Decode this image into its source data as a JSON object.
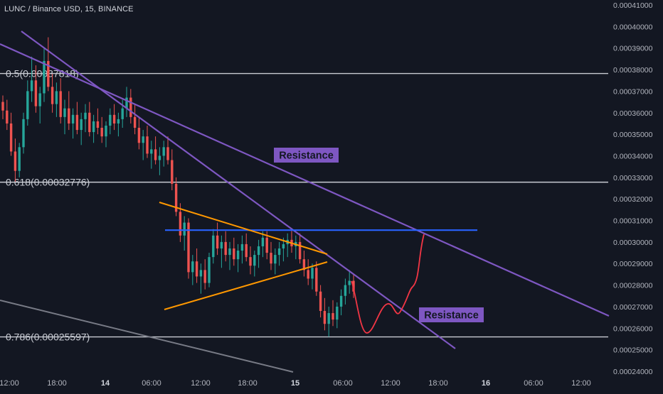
{
  "header": {
    "symbol_title": "LUNC / Binance USD, 15, BINANCE"
  },
  "colors": {
    "background": "#131722",
    "candle_up": "#26a69a",
    "candle_down": "#ef5350",
    "fib_line": "#c9ccd4",
    "trend_purple": "#7e57c2",
    "triangle_orange": "#ff9800",
    "horizontal_blue": "#2962ff",
    "projection_red": "#f23645",
    "channel_gray": "#787b86",
    "axis_text": "#b2b5be"
  },
  "chart_data": {
    "type": "candlestick",
    "title": "LUNC / Binance USD, 15, BINANCE",
    "x_axis": {
      "tick_labels": [
        "12:00",
        "18:00",
        "14",
        "06:00",
        "12:00",
        "18:00",
        "15",
        "06:00",
        "12:00",
        "18:00",
        "16",
        "06:00",
        "12:00"
      ]
    },
    "y_axis": {
      "range": [
        0.00024,
        0.00041
      ],
      "tick_labels": [
        "0.00041000",
        "0.00040000",
        "0.00039000",
        "0.00038000",
        "0.00037000",
        "0.00036000",
        "0.00035000",
        "0.00034000",
        "0.00033000",
        "0.00032000",
        "0.00031000",
        "0.00030000",
        "0.00029000",
        "0.00028000",
        "0.00027000",
        "0.00026000",
        "0.00025000",
        "0.00024000"
      ]
    },
    "fib_levels": [
      {
        "label": "0.5(0.00037818)",
        "value": 0.00037818
      },
      {
        "label": "0.618(0.00032776)",
        "value": 0.00032776
      },
      {
        "label": "0.786(0.00025597)",
        "value": 0.00025597
      }
    ],
    "annotations": [
      {
        "label": "Resistance",
        "position": "upper-middle"
      },
      {
        "label": "Resistance",
        "position": "lower-right"
      }
    ],
    "horizontal_resistance": 0.0003055,
    "candles": [
      [
        0.000365,
        0.000368,
        0.000357,
        0.000361
      ],
      [
        0.000361,
        0.000366,
        0.000352,
        0.000355
      ],
      [
        0.000355,
        0.00036,
        0.00034,
        0.000342
      ],
      [
        0.000342,
        0.000348,
        0.000328,
        0.000333
      ],
      [
        0.000333,
        0.000346,
        0.00033,
        0.000344
      ],
      [
        0.000344,
        0.00036,
        0.000341,
        0.000357
      ],
      [
        0.000357,
        0.000375,
        0.000354,
        0.00037
      ],
      [
        0.00037,
        0.000386,
        0.000365,
        0.000375
      ],
      [
        0.000375,
        0.000382,
        0.00036,
        0.000363
      ],
      [
        0.000363,
        0.000372,
        0.000355,
        0.000369
      ],
      [
        0.000369,
        0.00039,
        0.000365,
        0.000384
      ],
      [
        0.000384,
        0.000395,
        0.00037,
        0.000372
      ],
      [
        0.000372,
        0.000378,
        0.00036,
        0.000364
      ],
      [
        0.000364,
        0.000374,
        0.000358,
        0.00037
      ],
      [
        0.00037,
        0.000376,
        0.000355,
        0.000358
      ],
      [
        0.000358,
        0.000366,
        0.00035,
        0.000362
      ],
      [
        0.000362,
        0.00037,
        0.000352,
        0.000355
      ],
      [
        0.000355,
        0.000362,
        0.000348,
        0.000359
      ],
      [
        0.000359,
        0.000365,
        0.00035,
        0.000352
      ],
      [
        0.000352,
        0.00036,
        0.000345,
        0.000357
      ],
      [
        0.000357,
        0.000364,
        0.000351,
        0.00036
      ],
      [
        0.00036,
        0.000365,
        0.000349,
        0.000351
      ],
      [
        0.000351,
        0.000359,
        0.000346,
        0.000356
      ],
      [
        0.000356,
        0.000362,
        0.00035,
        0.000353
      ],
      [
        0.000353,
        0.000358,
        0.000346,
        0.000349
      ],
      [
        0.000349,
        0.000356,
        0.000344,
        0.000354
      ],
      [
        0.000354,
        0.000362,
        0.00035,
        0.000359
      ],
      [
        0.000359,
        0.000364,
        0.000352,
        0.000355
      ],
      [
        0.000355,
        0.00036,
        0.000349,
        0.000357
      ],
      [
        0.000357,
        0.000366,
        0.000353,
        0.000362
      ],
      [
        0.000362,
        0.000372,
        0.000358,
        0.000367
      ],
      [
        0.000367,
        0.000371,
        0.000355,
        0.000358
      ],
      [
        0.000358,
        0.000364,
        0.00035,
        0.000353
      ],
      [
        0.000353,
        0.000358,
        0.000343,
        0.000346
      ],
      [
        0.000346,
        0.000352,
        0.000338,
        0.000349
      ],
      [
        0.000349,
        0.000354,
        0.000339,
        0.000341
      ],
      [
        0.000341,
        0.000347,
        0.000334,
        0.000343
      ],
      [
        0.000343,
        0.000349,
        0.000336,
        0.000338
      ],
      [
        0.000338,
        0.000344,
        0.000331,
        0.00034
      ],
      [
        0.00034,
        0.000347,
        0.000335,
        0.000344
      ],
      [
        0.000344,
        0.000349,
        0.000336,
        0.000338
      ],
      [
        0.000338,
        0.000343,
        0.000324,
        0.000327
      ],
      [
        0.000327,
        0.00033,
        0.000312,
        0.000314
      ],
      [
        0.000314,
        0.000318,
        0.0003,
        0.000303
      ],
      [
        0.000303,
        0.000312,
        0.000296,
        0.000309
      ],
      [
        0.000309,
        0.000311,
        0.000283,
        0.000286
      ],
      [
        0.000286,
        0.000294,
        0.00028,
        0.000291
      ],
      [
        0.000291,
        0.000297,
        0.000281,
        0.000284
      ],
      [
        0.000284,
        0.00029,
        0.000276,
        0.000287
      ],
      [
        0.000287,
        0.000292,
        0.000278,
        0.000281
      ],
      [
        0.000281,
        0.000295,
        0.000279,
        0.000293
      ],
      [
        0.000293,
        0.000306,
        0.00029,
        0.000303
      ],
      [
        0.000303,
        0.000309,
        0.000294,
        0.000297
      ],
      [
        0.000297,
        0.000303,
        0.000288,
        0.0003
      ],
      [
        0.0003,
        0.000305,
        0.000291,
        0.000294
      ],
      [
        0.000294,
        0.0003,
        0.000287,
        0.000297
      ],
      [
        0.000297,
        0.000302,
        0.000289,
        0.000292
      ],
      [
        0.000292,
        0.000299,
        0.000286,
        0.000296
      ],
      [
        0.000296,
        0.000303,
        0.00029,
        0.000299
      ],
      [
        0.000299,
        0.000304,
        0.000291,
        0.000293
      ],
      [
        0.000293,
        0.000298,
        0.000285,
        0.000289
      ],
      [
        0.000289,
        0.000296,
        0.000284,
        0.000294
      ],
      [
        0.000294,
        0.000301,
        0.000288,
        0.000298
      ],
      [
        0.000298,
        0.000305,
        0.000293,
        0.000302
      ],
      [
        0.000302,
        0.000305,
        0.000292,
        0.000295
      ],
      [
        0.000295,
        0.0003,
        0.000287,
        0.00029
      ],
      [
        0.00029,
        0.000297,
        0.000285,
        0.000294
      ],
      [
        0.000294,
        0.0003,
        0.000289,
        0.000297
      ],
      [
        0.000297,
        0.000302,
        0.000291,
        0.000299
      ],
      [
        0.000299,
        0.000304,
        0.000293,
        0.000301
      ],
      [
        0.000301,
        0.000306,
        0.000295,
        0.000298
      ],
      [
        0.000298,
        0.000303,
        0.000292,
        0.0003
      ],
      [
        0.0003,
        0.000304,
        0.00029,
        0.000292
      ],
      [
        0.000292,
        0.000296,
        0.000284,
        0.000287
      ],
      [
        0.000287,
        0.000292,
        0.00028,
        0.000283
      ],
      [
        0.000283,
        0.00029,
        0.000278,
        0.000288
      ],
      [
        0.000288,
        0.000291,
        0.000275,
        0.000277
      ],
      [
        0.000277,
        0.00028,
        0.000265,
        0.000268
      ],
      [
        0.000268,
        0.000274,
        0.000259,
        0.000262
      ],
      [
        0.000262,
        0.00027,
        0.000256,
        0.000267
      ],
      [
        0.000267,
        0.000273,
        0.000261,
        0.000264
      ],
      [
        0.000264,
        0.000272,
        0.00026,
        0.00027
      ],
      [
        0.00027,
        0.000278,
        0.000266,
        0.000275
      ],
      [
        0.000275,
        0.000283,
        0.000271,
        0.00028
      ],
      [
        0.00028,
        0.000287,
        0.000276,
        0.000282
      ],
      [
        0.000282,
        0.000285,
        0.000274,
        0.000277
      ]
    ]
  }
}
